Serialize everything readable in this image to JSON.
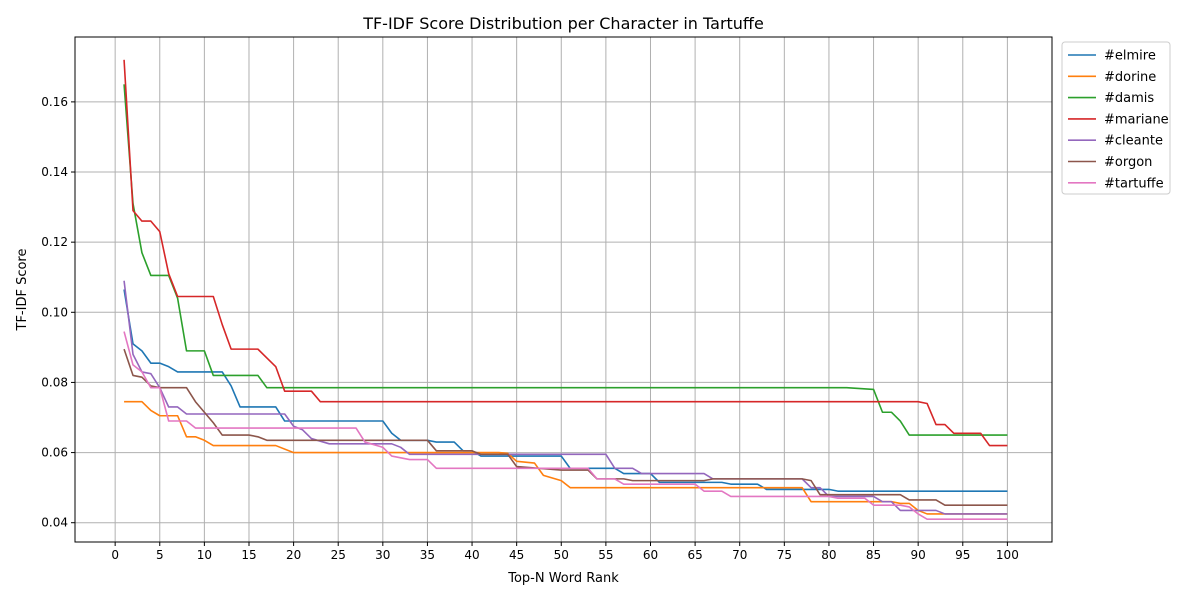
{
  "chart_data": {
    "type": "line",
    "title": "TF-IDF Score Distribution per Character in Tartuffe",
    "xlabel": "Top-N Word Rank",
    "ylabel": "TF-IDF Score",
    "xlim": [
      -4.5,
      105
    ],
    "ylim": [
      0.0345,
      0.1785
    ],
    "xticks": [
      0,
      5,
      10,
      15,
      20,
      25,
      30,
      35,
      40,
      45,
      50,
      55,
      60,
      65,
      70,
      75,
      80,
      85,
      90,
      95,
      100
    ],
    "yticks": [
      0.04,
      0.06,
      0.08,
      0.1,
      0.12,
      0.14,
      0.16
    ],
    "ytick_labels": [
      "0.04",
      "0.06",
      "0.08",
      "0.10",
      "0.12",
      "0.14",
      "0.16"
    ],
    "grid": true,
    "legend_position": "outside top-right",
    "series": [
      {
        "name": "#elmire",
        "color": "#1f77b4",
        "points": [
          [
            1,
            0.1065
          ],
          [
            2,
            0.091
          ],
          [
            3,
            0.089
          ],
          [
            4,
            0.0855
          ],
          [
            5,
            0.0855
          ],
          [
            6,
            0.0845
          ],
          [
            7,
            0.083
          ],
          [
            12,
            0.083
          ],
          [
            13,
            0.079
          ],
          [
            14,
            0.073
          ],
          [
            18,
            0.073
          ],
          [
            19,
            0.069
          ],
          [
            30,
            0.069
          ],
          [
            31,
            0.0655
          ],
          [
            32,
            0.0635
          ],
          [
            35,
            0.0635
          ],
          [
            36,
            0.063
          ],
          [
            38,
            0.063
          ],
          [
            39,
            0.0605
          ],
          [
            40,
            0.0605
          ],
          [
            41,
            0.059
          ],
          [
            50,
            0.059
          ],
          [
            51,
            0.0555
          ],
          [
            56,
            0.0555
          ],
          [
            57,
            0.054
          ],
          [
            60,
            0.054
          ],
          [
            61,
            0.0515
          ],
          [
            68,
            0.0515
          ],
          [
            69,
            0.051
          ],
          [
            72,
            0.051
          ],
          [
            73,
            0.0495
          ],
          [
            80,
            0.0495
          ],
          [
            81,
            0.049
          ],
          [
            100,
            0.049
          ]
        ]
      },
      {
        "name": "#dorine",
        "color": "#ff7f0e",
        "points": [
          [
            1,
            0.0745
          ],
          [
            3,
            0.0745
          ],
          [
            4,
            0.072
          ],
          [
            5,
            0.0705
          ],
          [
            7,
            0.0705
          ],
          [
            8,
            0.0645
          ],
          [
            9,
            0.0645
          ],
          [
            10,
            0.0635
          ],
          [
            11,
            0.062
          ],
          [
            18,
            0.062
          ],
          [
            20,
            0.06
          ],
          [
            43,
            0.06
          ],
          [
            44,
            0.0598
          ],
          [
            45,
            0.0575
          ],
          [
            47,
            0.057
          ],
          [
            48,
            0.0535
          ],
          [
            50,
            0.052
          ],
          [
            51,
            0.05
          ],
          [
            77,
            0.05
          ],
          [
            78,
            0.046
          ],
          [
            87,
            0.046
          ],
          [
            88,
            0.0455
          ],
          [
            89,
            0.0455
          ],
          [
            90,
            0.0435
          ],
          [
            91,
            0.0425
          ],
          [
            100,
            0.0425
          ]
        ]
      },
      {
        "name": "#damis",
        "color": "#2ca02c",
        "points": [
          [
            1,
            0.165
          ],
          [
            2,
            0.131
          ],
          [
            3,
            0.117
          ],
          [
            4,
            0.1105
          ],
          [
            6,
            0.1105
          ],
          [
            7,
            0.104
          ],
          [
            8,
            0.089
          ],
          [
            10,
            0.089
          ],
          [
            11,
            0.082
          ],
          [
            16,
            0.082
          ],
          [
            17,
            0.0785
          ],
          [
            82,
            0.0785
          ],
          [
            85,
            0.078
          ],
          [
            86,
            0.0715
          ],
          [
            87,
            0.0715
          ],
          [
            88,
            0.069
          ],
          [
            89,
            0.065
          ],
          [
            100,
            0.065
          ]
        ]
      },
      {
        "name": "#mariane",
        "color": "#d62728",
        "points": [
          [
            1,
            0.172
          ],
          [
            2,
            0.129
          ],
          [
            3,
            0.126
          ],
          [
            4,
            0.126
          ],
          [
            5,
            0.123
          ],
          [
            6,
            0.111
          ],
          [
            7,
            0.1045
          ],
          [
            11,
            0.1045
          ],
          [
            12,
            0.0965
          ],
          [
            13,
            0.0895
          ],
          [
            16,
            0.0895
          ],
          [
            17,
            0.087
          ],
          [
            18,
            0.0845
          ],
          [
            19,
            0.0775
          ],
          [
            22,
            0.0775
          ],
          [
            23,
            0.0745
          ],
          [
            90,
            0.0745
          ],
          [
            91,
            0.074
          ],
          [
            92,
            0.068
          ],
          [
            93,
            0.068
          ],
          [
            94,
            0.0655
          ],
          [
            97,
            0.0655
          ],
          [
            98,
            0.062
          ],
          [
            100,
            0.062
          ]
        ]
      },
      {
        "name": "#cleante",
        "color": "#9467bd",
        "points": [
          [
            1,
            0.109
          ],
          [
            2,
            0.088
          ],
          [
            3,
            0.083
          ],
          [
            4,
            0.0825
          ],
          [
            5,
            0.0785
          ],
          [
            6,
            0.073
          ],
          [
            7,
            0.073
          ],
          [
            8,
            0.071
          ],
          [
            19,
            0.071
          ],
          [
            20,
            0.0675
          ],
          [
            21,
            0.0665
          ],
          [
            22,
            0.064
          ],
          [
            24,
            0.0625
          ],
          [
            31,
            0.0625
          ],
          [
            32,
            0.0615
          ],
          [
            33,
            0.0595
          ],
          [
            55,
            0.0595
          ],
          [
            56,
            0.0555
          ],
          [
            58,
            0.0555
          ],
          [
            59,
            0.054
          ],
          [
            66,
            0.054
          ],
          [
            67,
            0.0525
          ],
          [
            77,
            0.0525
          ],
          [
            78,
            0.05
          ],
          [
            79,
            0.05
          ],
          [
            80,
            0.0475
          ],
          [
            85,
            0.0475
          ],
          [
            86,
            0.046
          ],
          [
            87,
            0.046
          ],
          [
            88,
            0.0435
          ],
          [
            90,
            0.0435
          ],
          [
            91,
            0.0435
          ],
          [
            92,
            0.0435
          ],
          [
            93,
            0.0425
          ],
          [
            100,
            0.0425
          ]
        ]
      },
      {
        "name": "#orgon",
        "color": "#8c564b",
        "points": [
          [
            1,
            0.0895
          ],
          [
            2,
            0.082
          ],
          [
            3,
            0.0815
          ],
          [
            4,
            0.079
          ],
          [
            5,
            0.0785
          ],
          [
            8,
            0.0785
          ],
          [
            9,
            0.0745
          ],
          [
            10,
            0.0715
          ],
          [
            11,
            0.0685
          ],
          [
            12,
            0.065
          ],
          [
            15,
            0.065
          ],
          [
            16,
            0.0645
          ],
          [
            17,
            0.0635
          ],
          [
            35,
            0.0635
          ],
          [
            36,
            0.0605
          ],
          [
            40,
            0.0605
          ],
          [
            41,
            0.0595
          ],
          [
            44,
            0.0595
          ],
          [
            45,
            0.056
          ],
          [
            50,
            0.055
          ],
          [
            53,
            0.055
          ],
          [
            54,
            0.0525
          ],
          [
            57,
            0.0525
          ],
          [
            58,
            0.052
          ],
          [
            66,
            0.052
          ],
          [
            67,
            0.0525
          ],
          [
            77,
            0.0525
          ],
          [
            78,
            0.052
          ],
          [
            79,
            0.048
          ],
          [
            88,
            0.048
          ],
          [
            89,
            0.0465
          ],
          [
            92,
            0.0465
          ],
          [
            93,
            0.045
          ],
          [
            100,
            0.045
          ]
        ]
      },
      {
        "name": "#tartuffe",
        "color": "#e377c2",
        "points": [
          [
            1,
            0.0945
          ],
          [
            2,
            0.085
          ],
          [
            3,
            0.083
          ],
          [
            4,
            0.0785
          ],
          [
            5,
            0.0785
          ],
          [
            6,
            0.069
          ],
          [
            8,
            0.069
          ],
          [
            9,
            0.067
          ],
          [
            27,
            0.067
          ],
          [
            28,
            0.063
          ],
          [
            30,
            0.0615
          ],
          [
            31,
            0.059
          ],
          [
            33,
            0.058
          ],
          [
            35,
            0.058
          ],
          [
            36,
            0.0555
          ],
          [
            53,
            0.0555
          ],
          [
            54,
            0.0525
          ],
          [
            56,
            0.0525
          ],
          [
            57,
            0.051
          ],
          [
            65,
            0.051
          ],
          [
            66,
            0.049
          ],
          [
            68,
            0.049
          ],
          [
            69,
            0.0475
          ],
          [
            80,
            0.0475
          ],
          [
            81,
            0.047
          ],
          [
            84,
            0.047
          ],
          [
            85,
            0.045
          ],
          [
            87,
            0.045
          ],
          [
            88,
            0.045
          ],
          [
            89,
            0.0445
          ],
          [
            90,
            0.0425
          ],
          [
            91,
            0.041
          ],
          [
            100,
            0.041
          ]
        ]
      }
    ]
  }
}
